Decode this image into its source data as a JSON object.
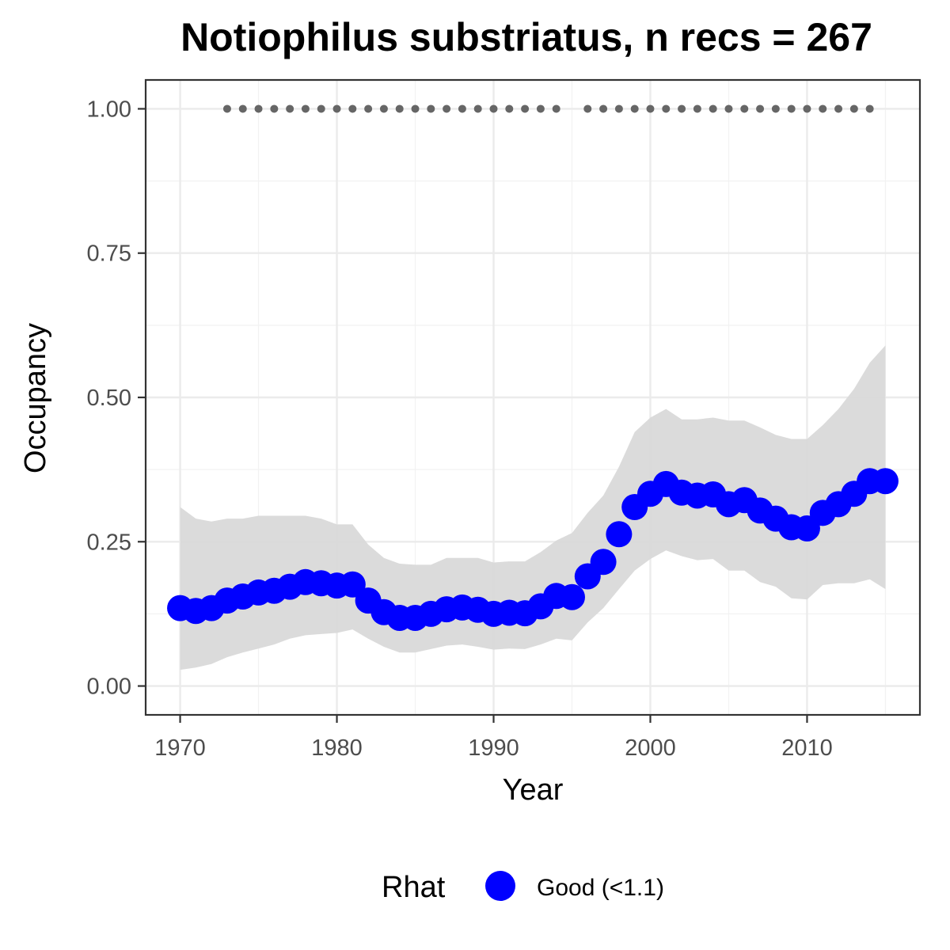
{
  "chart_data": {
    "type": "line",
    "title": "Notiophilus substriatus, n recs = 267",
    "xlabel": "Year",
    "ylabel": "Occupancy",
    "xlim": [
      1967.8,
      2017.2
    ],
    "ylim": [
      -0.05,
      1.05
    ],
    "x_ticks": [
      1970,
      1980,
      1990,
      2000,
      2010
    ],
    "y_ticks": [
      0,
      0.25,
      0.5,
      0.75,
      1
    ],
    "x_tick_labels": [
      "1970",
      "1980",
      "1990",
      "2000",
      "2010"
    ],
    "y_tick_labels": [
      "0.00",
      "0.25",
      "0.50",
      "0.75",
      "1.00"
    ],
    "grid": true,
    "x": [
      1970,
      1971,
      1972,
      1973,
      1974,
      1975,
      1976,
      1977,
      1978,
      1979,
      1980,
      1981,
      1982,
      1983,
      1984,
      1985,
      1986,
      1987,
      1988,
      1989,
      1990,
      1991,
      1992,
      1993,
      1994,
      1995,
      1996,
      1997,
      1998,
      1999,
      2000,
      2001,
      2002,
      2003,
      2004,
      2005,
      2006,
      2007,
      2008,
      2009,
      2010,
      2011,
      2012,
      2013,
      2014,
      2015
    ],
    "series": [
      {
        "name": "Good (<1.1)",
        "color": "#0000ff",
        "y": [
          0.135,
          0.13,
          0.135,
          0.148,
          0.155,
          0.162,
          0.165,
          0.172,
          0.18,
          0.178,
          0.174,
          0.176,
          0.148,
          0.128,
          0.118,
          0.118,
          0.125,
          0.133,
          0.136,
          0.132,
          0.125,
          0.127,
          0.126,
          0.138,
          0.156,
          0.154,
          0.19,
          0.215,
          0.263,
          0.31,
          0.333,
          0.35,
          0.335,
          0.33,
          0.332,
          0.315,
          0.322,
          0.304,
          0.29,
          0.275,
          0.273,
          0.3,
          0.315,
          0.333,
          0.355,
          0.355
        ]
      }
    ],
    "ribbon": {
      "color": "#d9d9d9",
      "lower": [
        0.028,
        0.032,
        0.038,
        0.05,
        0.058,
        0.065,
        0.072,
        0.082,
        0.088,
        0.09,
        0.092,
        0.098,
        0.082,
        0.068,
        0.058,
        0.058,
        0.064,
        0.07,
        0.072,
        0.068,
        0.063,
        0.065,
        0.064,
        0.072,
        0.082,
        0.079,
        0.11,
        0.135,
        0.168,
        0.2,
        0.22,
        0.235,
        0.225,
        0.218,
        0.22,
        0.2,
        0.2,
        0.18,
        0.172,
        0.152,
        0.15,
        0.175,
        0.178,
        0.178,
        0.185,
        0.168
      ],
      "upper": [
        0.31,
        0.29,
        0.285,
        0.29,
        0.29,
        0.295,
        0.295,
        0.295,
        0.295,
        0.29,
        0.28,
        0.28,
        0.245,
        0.222,
        0.212,
        0.21,
        0.21,
        0.222,
        0.222,
        0.222,
        0.214,
        0.216,
        0.216,
        0.232,
        0.252,
        0.265,
        0.3,
        0.33,
        0.38,
        0.44,
        0.465,
        0.48,
        0.462,
        0.462,
        0.465,
        0.46,
        0.46,
        0.448,
        0.435,
        0.428,
        0.428,
        0.452,
        0.48,
        0.515,
        0.56,
        0.59
      ]
    },
    "detections": {
      "color": "#666666",
      "y": 1.0,
      "x": [
        1973,
        1974,
        1975,
        1976,
        1977,
        1978,
        1979,
        1980,
        1981,
        1982,
        1983,
        1984,
        1985,
        1986,
        1987,
        1988,
        1989,
        1990,
        1991,
        1992,
        1993,
        1994,
        1996,
        1997,
        1998,
        1999,
        2000,
        2001,
        2002,
        2003,
        2004,
        2005,
        2006,
        2007,
        2008,
        2009,
        2010,
        2011,
        2012,
        2013,
        2014
      ]
    },
    "legend": {
      "title": "Rhat",
      "position": "bottom",
      "entries": [
        {
          "label": "Good (<1.1)",
          "color": "#0000ff"
        }
      ]
    }
  }
}
